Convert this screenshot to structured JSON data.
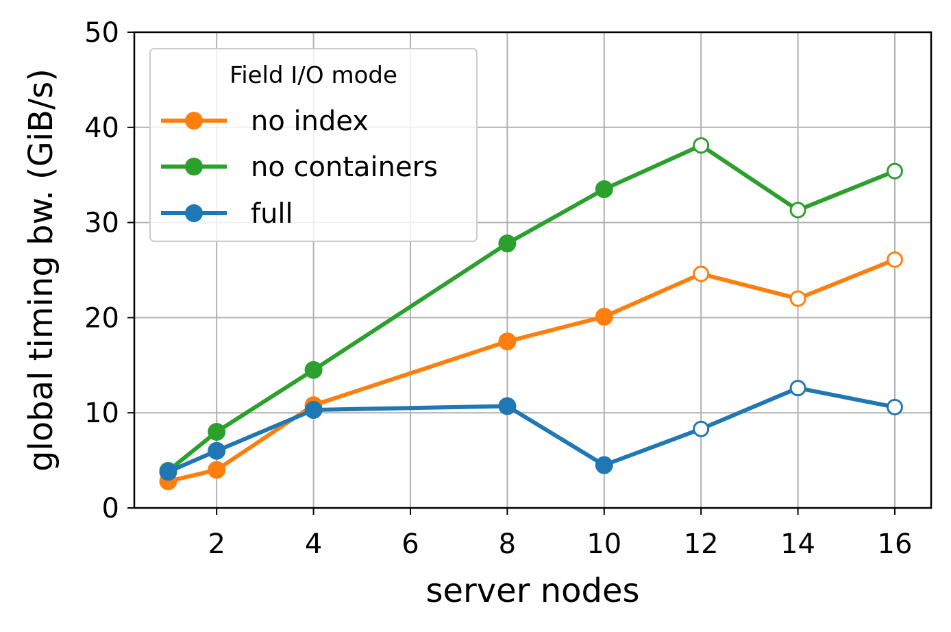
{
  "chart_data": {
    "type": "line",
    "xlabel": "server nodes",
    "ylabel": "global timing bw. (GiB/s)",
    "xlim": [
      0.3,
      16.75
    ],
    "ylim": [
      0,
      50
    ],
    "xticks": [
      2,
      4,
      6,
      8,
      10,
      12,
      14,
      16
    ],
    "yticks": [
      0,
      10,
      20,
      30,
      40,
      50
    ],
    "grid": true,
    "legend": {
      "title": "Field I/O mode",
      "placement": "top-left"
    },
    "series": [
      {
        "name": "no index",
        "color": "#ff7f0e",
        "x": [
          1,
          2,
          4,
          8,
          10,
          12,
          14,
          16
        ],
        "y": [
          2.8,
          4.0,
          10.8,
          17.5,
          20.1,
          24.6,
          22.0,
          26.1
        ],
        "filled": [
          true,
          true,
          true,
          true,
          true,
          false,
          false,
          false
        ]
      },
      {
        "name": "no containers",
        "color": "#2ca02c",
        "x": [
          1,
          2,
          4,
          8,
          10,
          12,
          14,
          16
        ],
        "y": [
          3.9,
          8.0,
          14.5,
          27.8,
          33.5,
          38.1,
          31.3,
          35.4
        ],
        "filled": [
          true,
          true,
          true,
          true,
          true,
          false,
          false,
          false
        ]
      },
      {
        "name": "full",
        "color": "#1f77b4",
        "x": [
          1,
          2,
          4,
          8,
          10,
          12,
          14,
          16
        ],
        "y": [
          3.8,
          6.0,
          10.3,
          10.7,
          4.5,
          8.3,
          12.6,
          10.6
        ],
        "filled": [
          true,
          true,
          true,
          true,
          true,
          false,
          false,
          false
        ]
      }
    ]
  }
}
